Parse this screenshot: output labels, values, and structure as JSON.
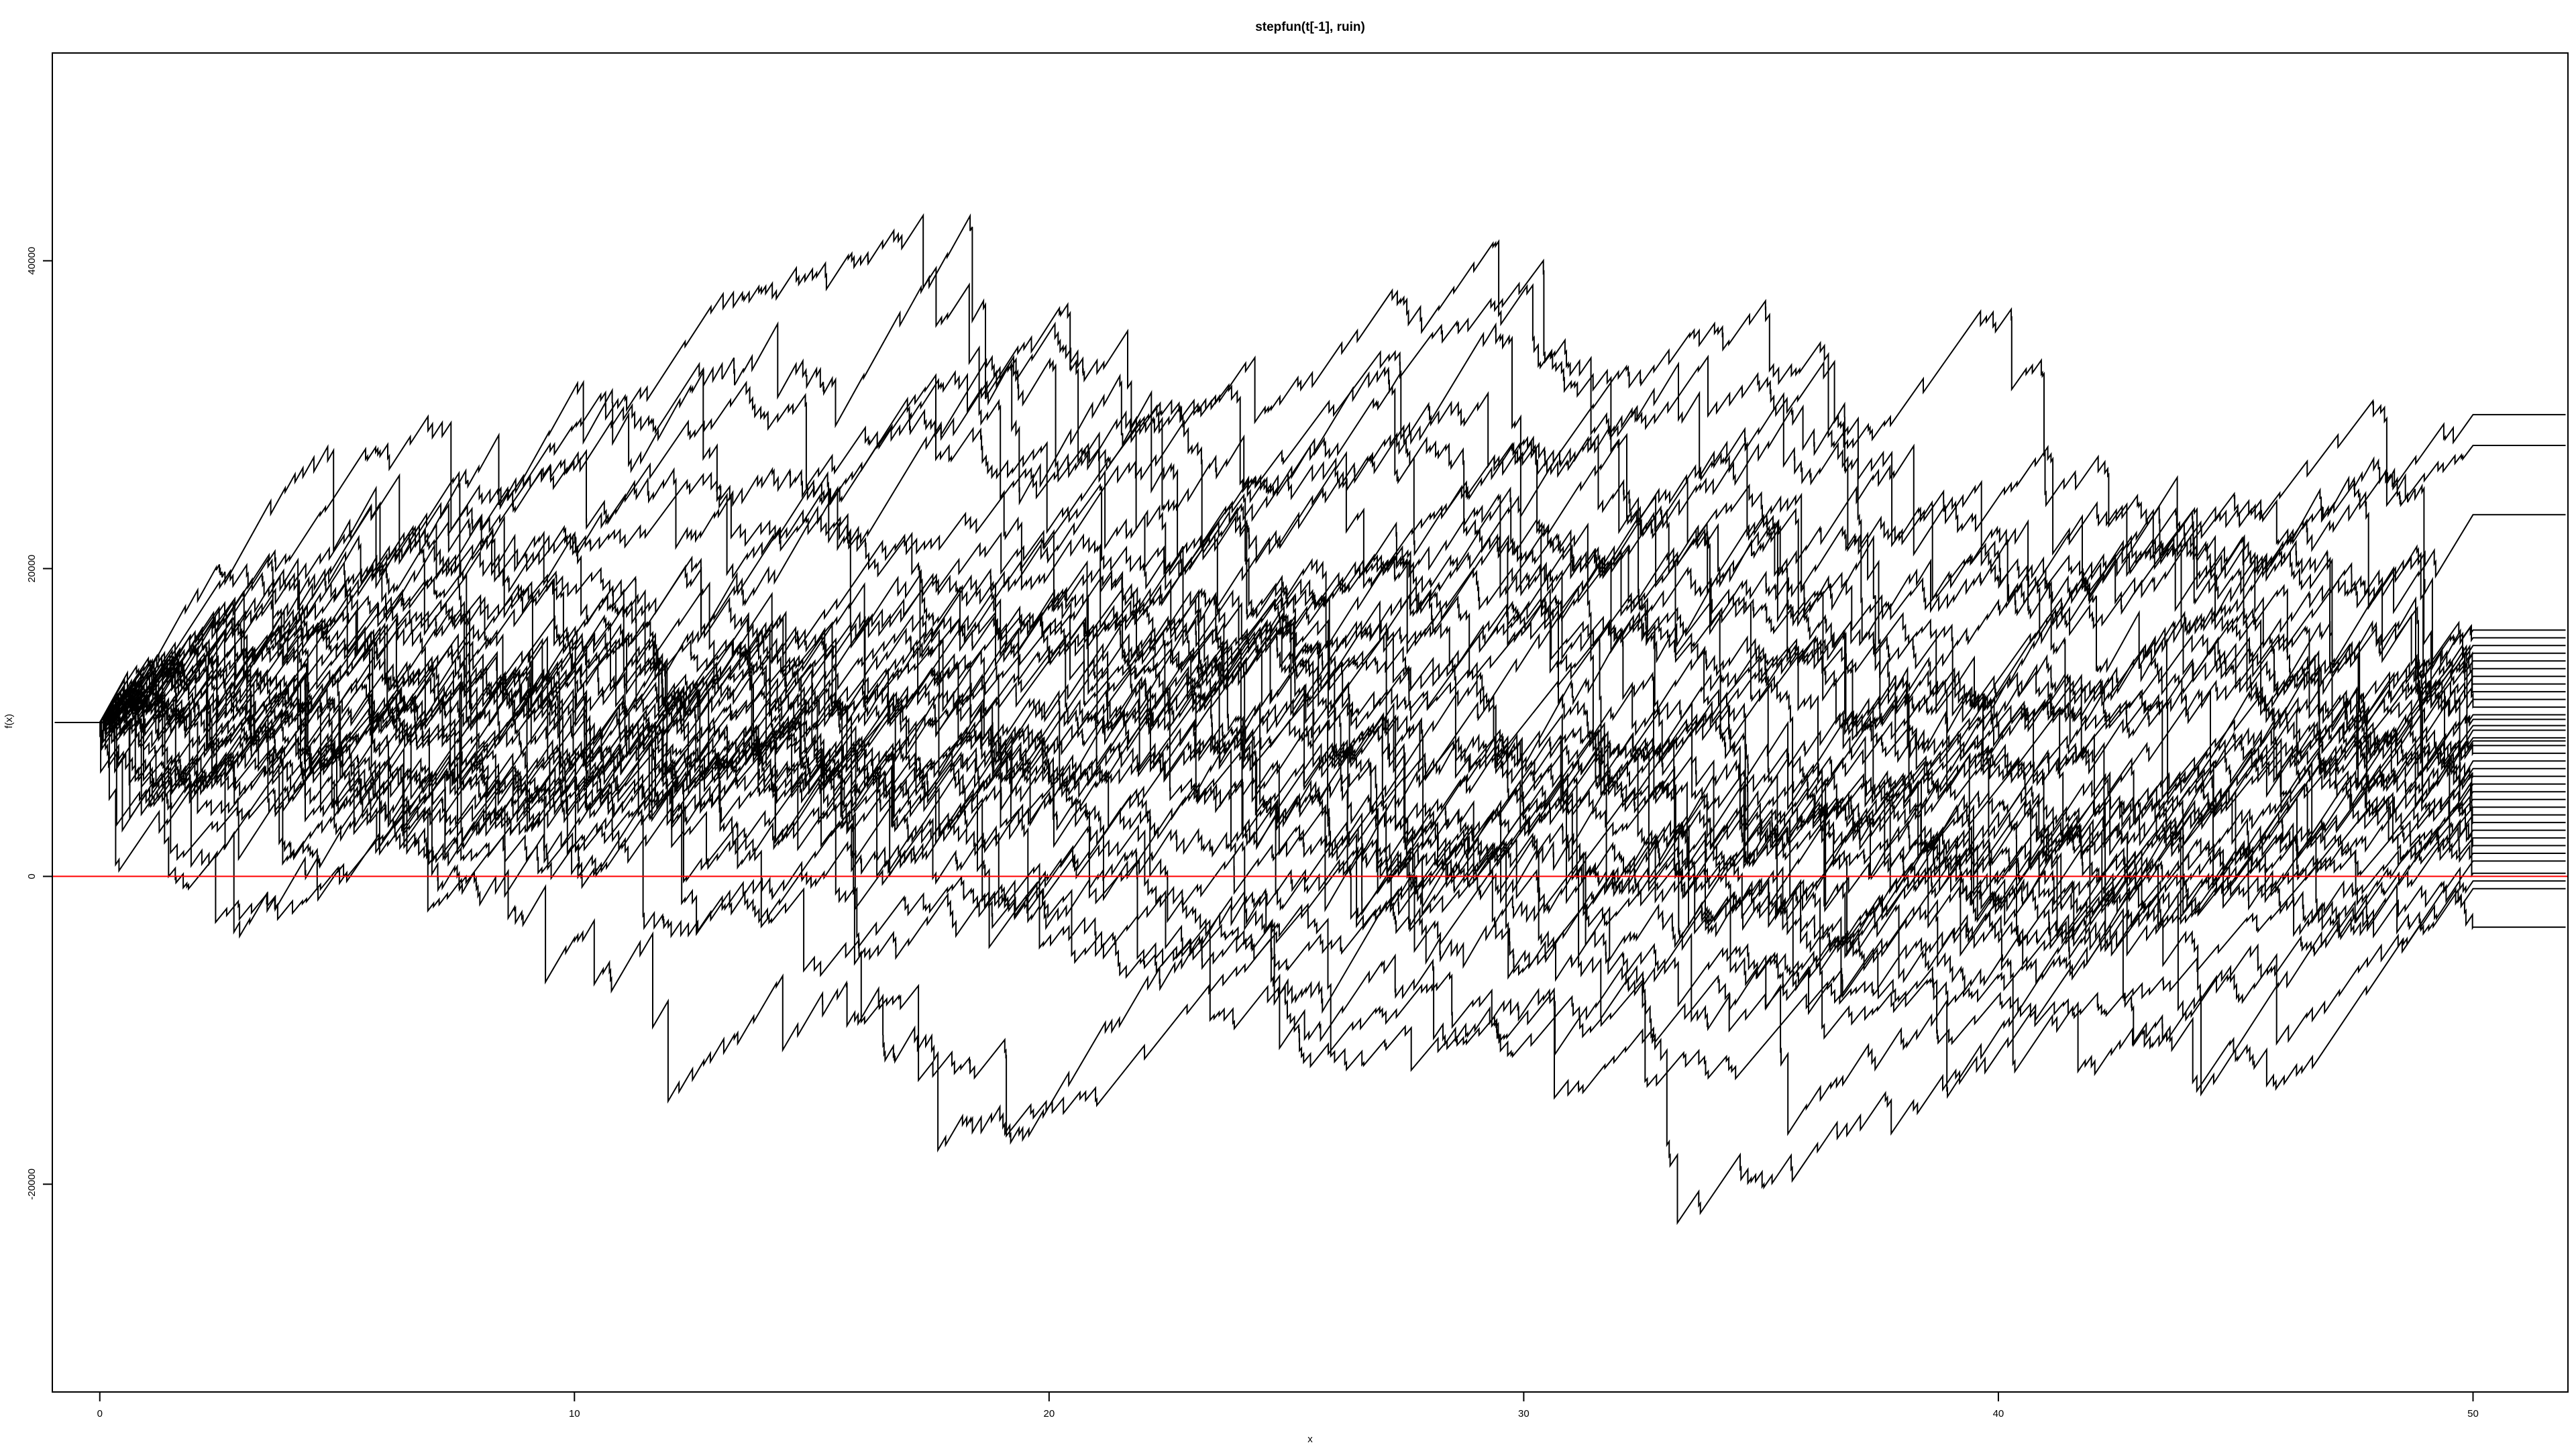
{
  "chart_data": {
    "type": "line",
    "style": "step",
    "title": "stepfun(t[-1], ruin)",
    "xlabel": "x",
    "ylabel": "f(x)",
    "xlim": [
      -1,
      52
    ],
    "ylim": [
      -33500,
      53500
    ],
    "x_ticks": [
      0,
      10,
      20,
      30,
      40,
      50
    ],
    "y_ticks": [
      -20000,
      0,
      20000,
      40000
    ],
    "x_tick_labels": [
      "0",
      "10",
      "20",
      "30",
      "40",
      "50"
    ],
    "y_tick_labels": [
      "-20000",
      "0",
      "20000",
      "40000"
    ],
    "x_range": [
      0,
      50
    ],
    "initial_value": 10000,
    "reference_line": {
      "y": 0,
      "color": "#ff0000"
    },
    "line_color": "#000000",
    "grid": false,
    "legend": "none",
    "series_count": 40,
    "series": [
      {
        "final_value": 30000
      },
      {
        "final_value": 28000
      },
      {
        "final_value": 23500
      },
      {
        "final_value": 16000
      },
      {
        "final_value": 15500
      },
      {
        "final_value": 15000
      },
      {
        "final_value": 14500
      },
      {
        "final_value": 14000
      },
      {
        "final_value": 10500
      },
      {
        "final_value": 10200
      },
      {
        "final_value": 9800
      },
      {
        "final_value": 9500
      },
      {
        "final_value": 9000
      },
      {
        "final_value": 8500
      },
      {
        "final_value": 8000
      },
      {
        "final_value": 7500
      },
      {
        "final_value": 5500
      },
      {
        "final_value": 5000
      },
      {
        "final_value": 4500
      },
      {
        "final_value": 4000
      },
      {
        "final_value": 200
      },
      {
        "final_value": -300
      },
      {
        "final_value": -800
      },
      {
        "final_value": -3300
      },
      {
        "final_value": 12000
      },
      {
        "final_value": 11500
      },
      {
        "final_value": 11000
      },
      {
        "final_value": 6500
      },
      {
        "final_value": 6000
      },
      {
        "final_value": 3000
      },
      {
        "final_value": 2500
      },
      {
        "final_value": 2000
      },
      {
        "final_value": 13000
      },
      {
        "final_value": 12500
      },
      {
        "final_value": 7000
      },
      {
        "final_value": 1500
      },
      {
        "final_value": 1000
      },
      {
        "final_value": 3500
      },
      {
        "final_value": 8800
      },
      {
        "final_value": 13500
      }
    ]
  }
}
